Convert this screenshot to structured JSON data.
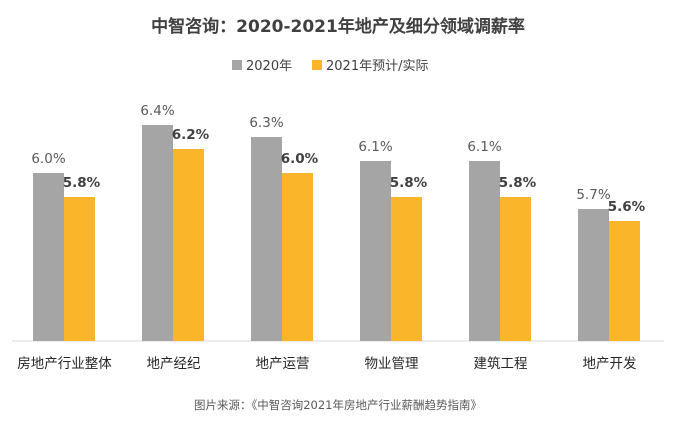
{
  "chart_data": {
    "type": "bar",
    "title": "中智咨询：2020-2021年地产及细分领域调薪率",
    "source": "图片来源：《中智咨询2021年房地产行业薪酬趋势指南》",
    "categories": [
      "房地产行业整体",
      "地产经纪",
      "地产运营",
      "物业管理",
      "建筑工程",
      "地产开发"
    ],
    "series": [
      {
        "name": "2020年",
        "color": "#a5a5a5",
        "values": [
          6.0,
          6.4,
          6.3,
          6.1,
          6.1,
          5.7
        ],
        "labels": [
          "6.0%",
          "6.4%",
          "6.3%",
          "6.1%",
          "6.1%",
          "5.7%"
        ]
      },
      {
        "name": "2021年预计/实际",
        "color": "#fbb52b",
        "values": [
          5.8,
          6.2,
          6.0,
          5.8,
          5.8,
          5.6
        ],
        "labels": [
          "5.8%",
          "6.2%",
          "6.0%",
          "5.8%",
          "5.8%",
          "5.6%"
        ]
      }
    ],
    "ylim": [
      4.6,
      6.4
    ],
    "grid": false,
    "legend_position": "top-center",
    "xlabel": "",
    "ylabel": ""
  }
}
